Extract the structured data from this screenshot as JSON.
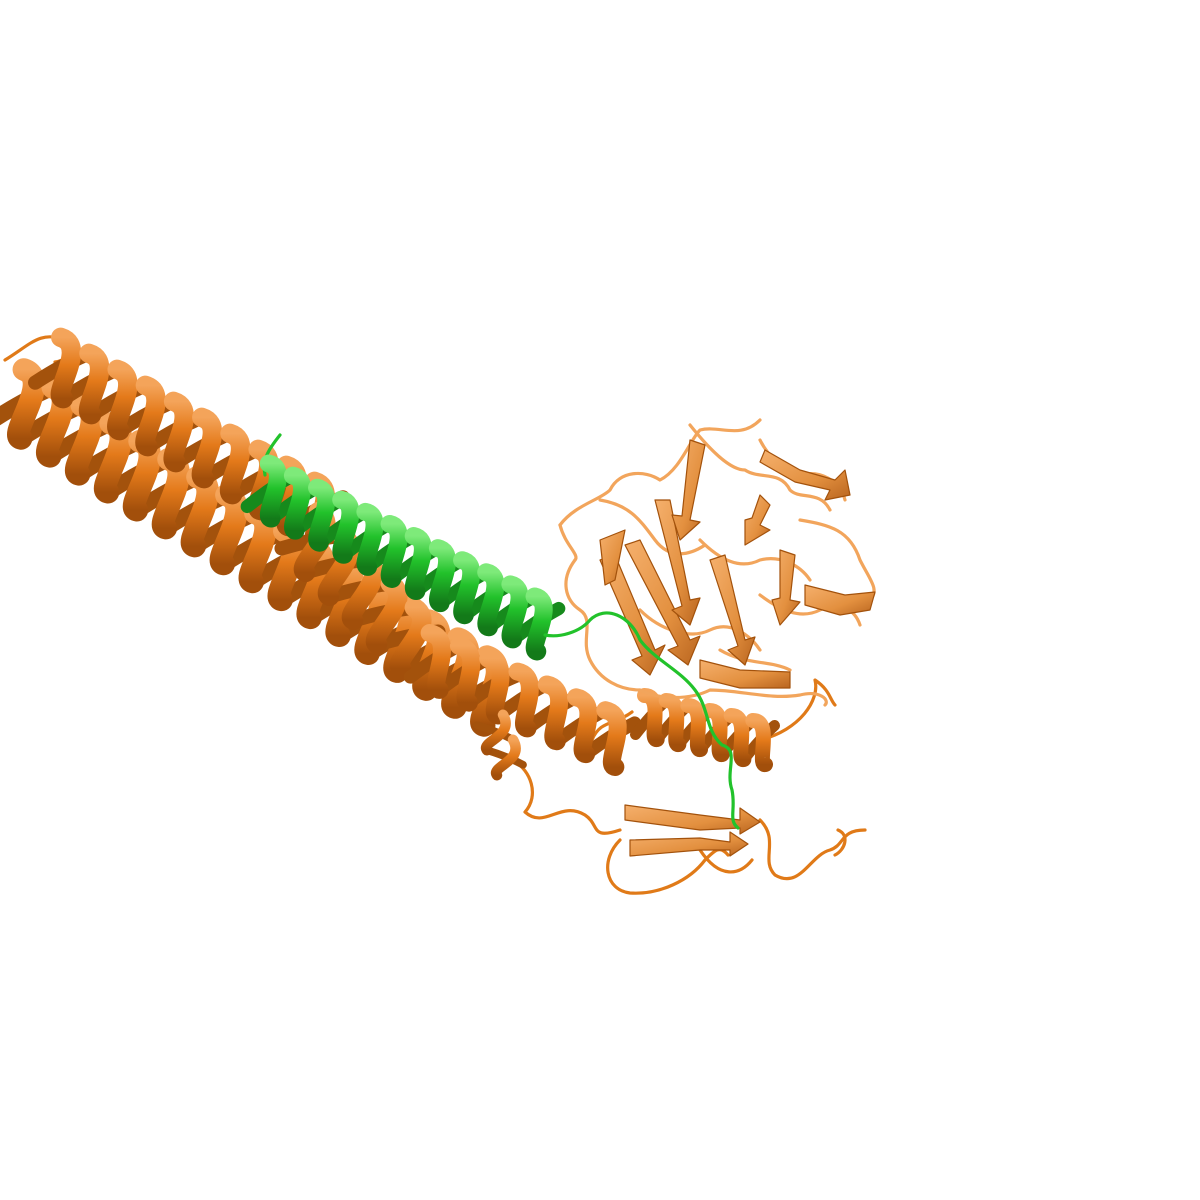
{
  "image": {
    "background": "#ffffff",
    "style": "cartoon"
  },
  "chains": [
    {
      "chain": "host",
      "color": "#e07a18",
      "highlight": "#f2a55c",
      "shadow": "#a3520c",
      "elements": [
        "alpha-helix",
        "alpha-helix",
        "alpha-helix",
        "beta-propeller",
        "beta-hairpin",
        "loops"
      ]
    },
    {
      "chain": "peptide",
      "color": "#22c22b",
      "highlight": "#6be070",
      "shadow": "#168a1c",
      "elements": [
        "alpha-helix",
        "extended-coil"
      ]
    }
  ]
}
